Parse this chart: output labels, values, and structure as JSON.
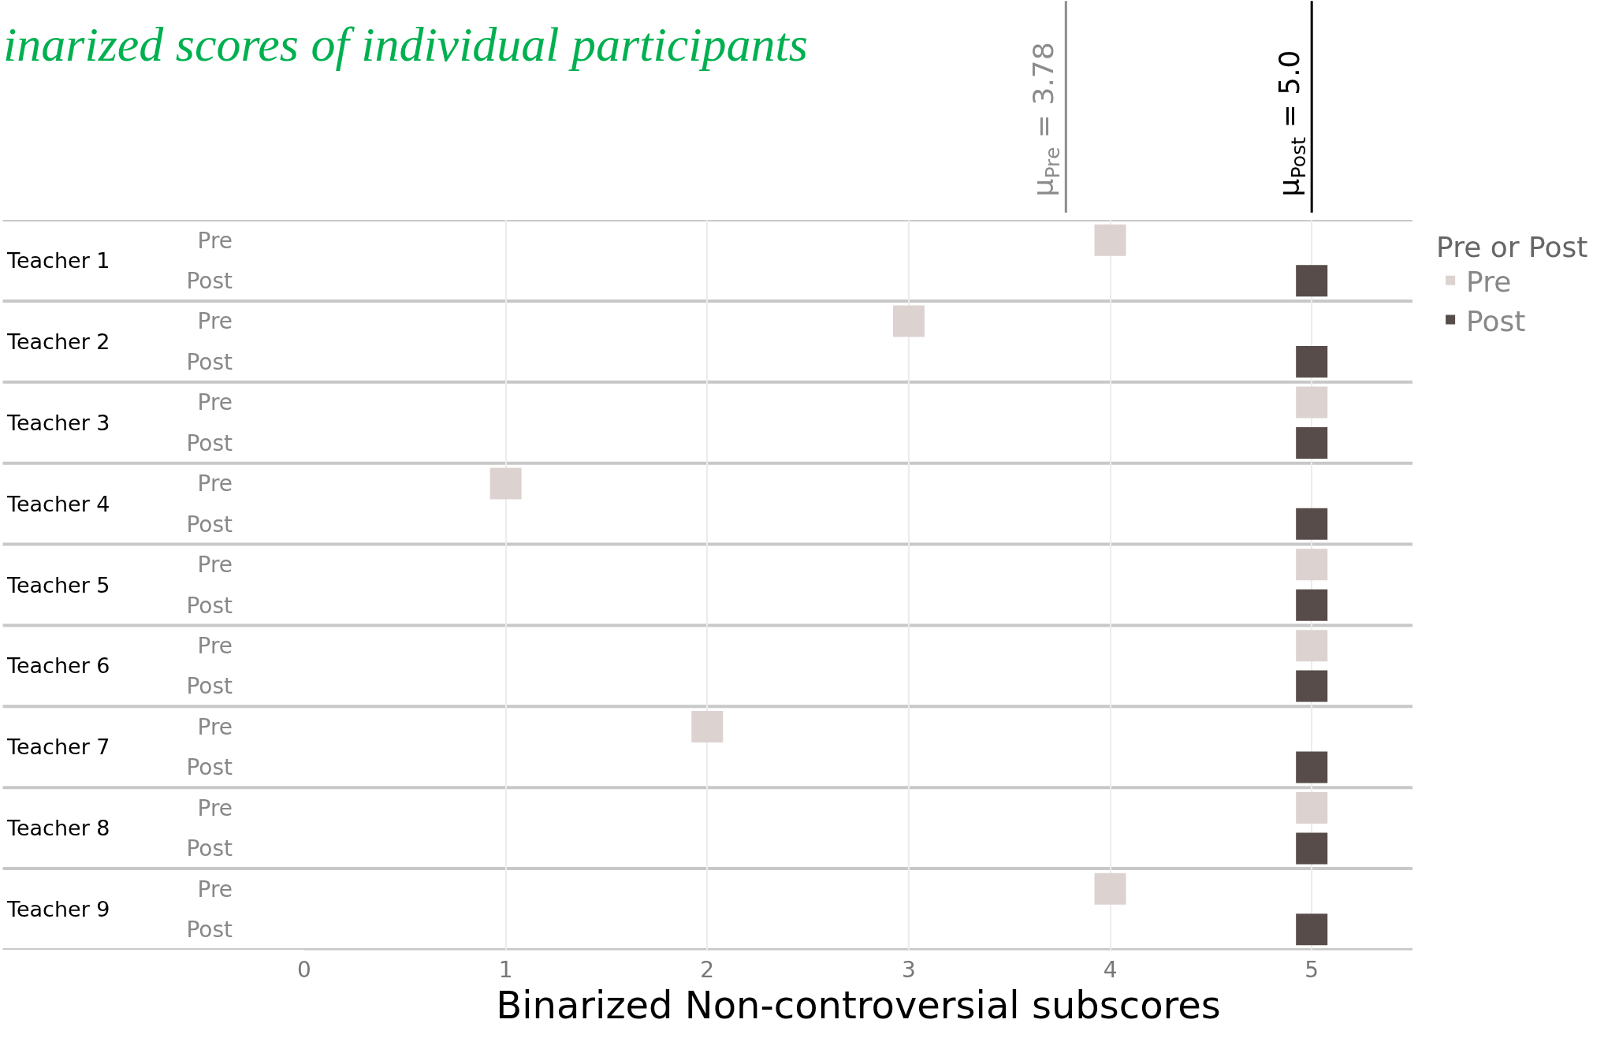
{
  "chart_data": {
    "type": "scatter",
    "orientation": "horizontal",
    "title": "inarized scores of individual participants",
    "xlabel": "Binarized Non-controversial subscores",
    "legend_title": "Pre or Post",
    "categories": [
      "Teacher 1",
      "Teacher 2",
      "Teacher 3",
      "Teacher 4",
      "Teacher 5",
      "Teacher 6",
      "Teacher 7",
      "Teacher 8",
      "Teacher 9"
    ],
    "series": [
      {
        "name": "Pre",
        "color": "#dcd3d1",
        "values": [
          4,
          3,
          5,
          1,
          5,
          5,
          2,
          5,
          4
        ]
      },
      {
        "name": "Post",
        "color": "#574c4a",
        "values": [
          5,
          5,
          5,
          5,
          5,
          5,
          5,
          5,
          5
        ]
      }
    ],
    "xlim": [
      0,
      5.5
    ],
    "xticks": [
      0,
      1,
      2,
      3,
      4,
      5
    ],
    "grid": "x",
    "legend": "top right",
    "marker": "square",
    "ref_lines": [
      {
        "axis": "x",
        "value": 3.78,
        "label": "μ$_{Pre}$ = 3.78",
        "color": "#8c8c8c"
      },
      {
        "axis": "x",
        "value": 5.0,
        "label": "μ$_{Post}$ = 5.0",
        "color": "#000000"
      }
    ]
  }
}
